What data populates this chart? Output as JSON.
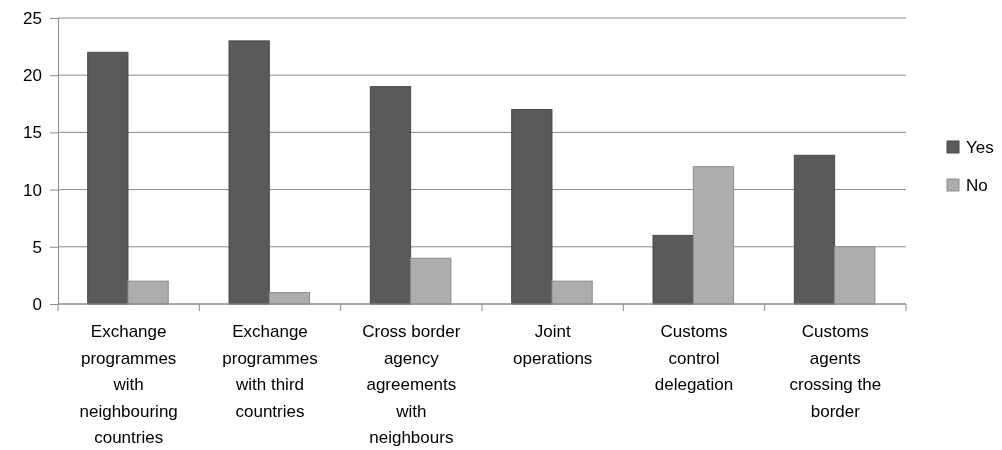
{
  "chart_data": {
    "type": "bar",
    "categories": [
      "Exchange programmes with neighbouring countries",
      "Exchange programmes with third countries",
      "Cross border agency agreements with neighbours",
      "Joint operations",
      "Customs control delegation",
      "Customs agents crossing the border"
    ],
    "series": [
      {
        "name": "Yes",
        "color": "#5a5a5a",
        "values": [
          22,
          23,
          19,
          17,
          6,
          13
        ]
      },
      {
        "name": "No",
        "color": "#adadad",
        "values": [
          2,
          1,
          4,
          2,
          12,
          5
        ]
      }
    ],
    "ylim": [
      0,
      25
    ],
    "yticks": [
      0,
      5,
      10,
      15,
      20,
      25
    ],
    "grid": "y",
    "legend": "right"
  }
}
